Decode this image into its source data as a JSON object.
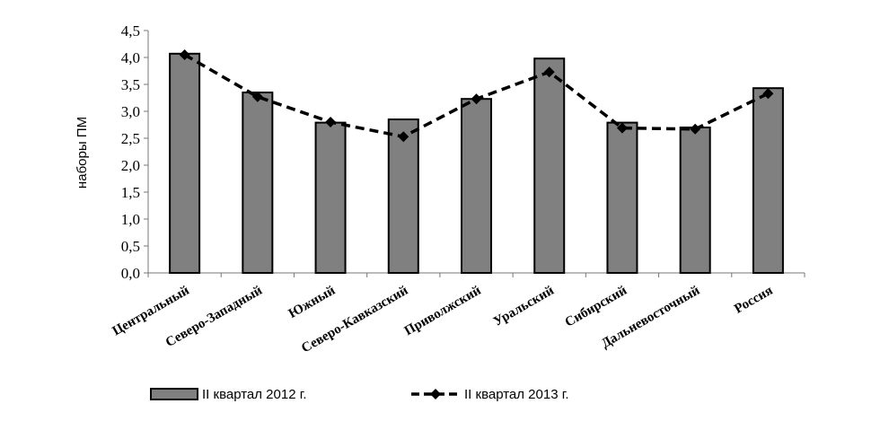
{
  "chart_data": {
    "type": "bar",
    "title": "",
    "xlabel": "",
    "ylabel": "наборы ПМ",
    "ylim": [
      0,
      4.5
    ],
    "yticks": [
      "0,0",
      "0,5",
      "1,0",
      "1,5",
      "2,0",
      "2,5",
      "3,0",
      "3,5",
      "4,0",
      "4,5"
    ],
    "grid": false,
    "legend_position": "bottom",
    "categories": [
      "Центральный",
      "Северо-Западный",
      "Южный",
      "Северо-Кавказский",
      "Приволжский",
      "Уральский",
      "Сибирский",
      "Дальневосточный",
      "Россия"
    ],
    "series": [
      {
        "name": "II квартал 2012 г.",
        "type": "bar",
        "color": "#808080",
        "values": [
          4.07,
          3.35,
          2.79,
          2.85,
          3.23,
          3.98,
          2.79,
          2.7,
          3.43
        ]
      },
      {
        "name": "II квартал 2013 г.",
        "type": "line",
        "style": "dashed",
        "marker": "diamond",
        "color": "#000000",
        "values": [
          4.05,
          3.27,
          2.8,
          2.53,
          3.23,
          3.73,
          2.69,
          2.67,
          3.33
        ]
      }
    ]
  }
}
